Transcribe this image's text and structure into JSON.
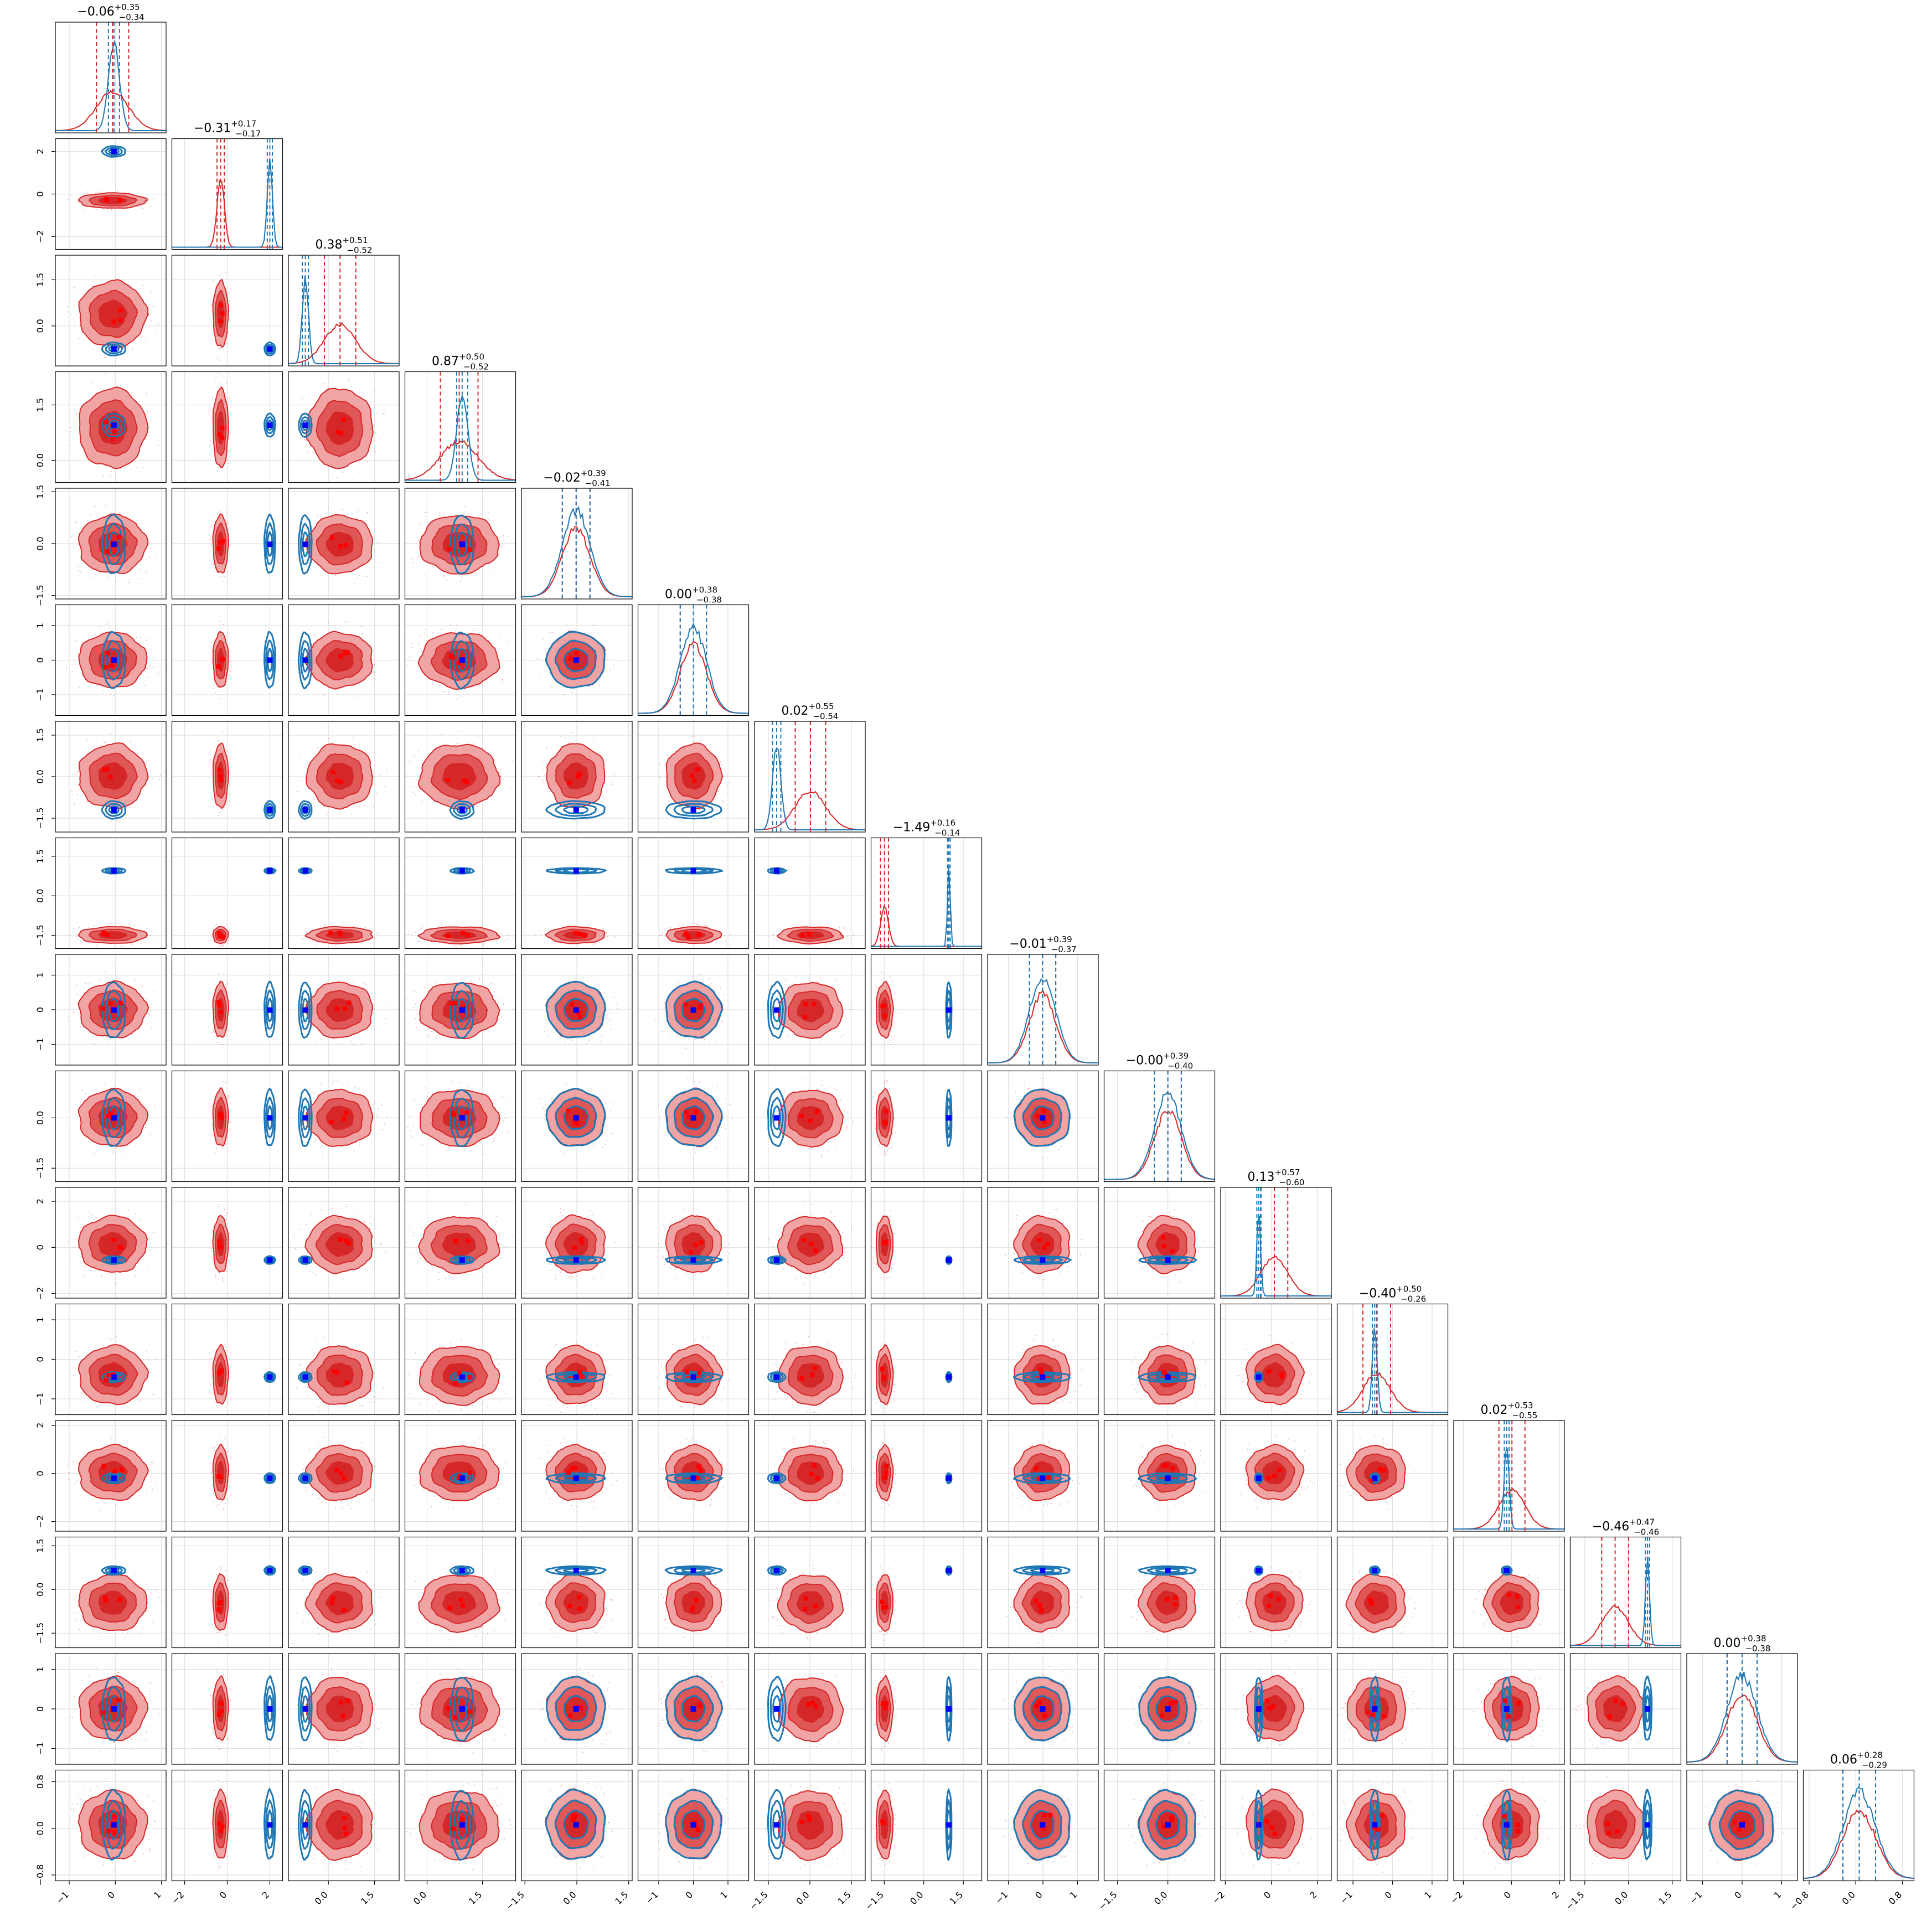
{
  "chart_data": {
    "type": "corner",
    "n_params": 16,
    "grid": true,
    "colors": {
      "red_line": "#d62728",
      "red_fill_outer": "#f1a4a4",
      "red_fill_inner": "#d62728",
      "blue_line": "#1f77b4",
      "truth_marker": "#0000ff",
      "red_points": "#ff0000"
    },
    "params": [
      {
        "index": 0,
        "title_med": "−0.06",
        "title_plus": "+0.35",
        "title_minus": "−0.34",
        "red_mean": -0.06,
        "red_sd": 0.35,
        "blue_mean": -0.03,
        "blue_sd": 0.12,
        "range": [
          -1.3,
          1.1
        ],
        "ticks": [
          -1,
          0,
          1
        ]
      },
      {
        "index": 1,
        "title_med": "−0.31",
        "title_plus": "+0.17",
        "title_minus": "−0.17",
        "red_mean": -0.31,
        "red_sd": 0.17,
        "blue_mean": 2.0,
        "blue_sd": 0.12,
        "range": [
          -2.6,
          2.6
        ],
        "ticks": [
          -2,
          0,
          2
        ]
      },
      {
        "index": 2,
        "title_med": "0.38",
        "title_plus": "+0.51",
        "title_minus": "−0.52",
        "red_mean": 0.38,
        "red_sd": 0.51,
        "blue_mean": -0.75,
        "blue_sd": 0.1,
        "range": [
          -1.3,
          2.3
        ],
        "ticks": [
          0.0,
          1.5
        ]
      },
      {
        "index": 3,
        "title_med": "0.87",
        "title_plus": "+0.50",
        "title_minus": "−0.52",
        "red_mean": 0.87,
        "red_sd": 0.51,
        "blue_mean": 0.95,
        "blue_sd": 0.15,
        "range": [
          -0.6,
          2.4
        ],
        "ticks": [
          0.0,
          1.5
        ]
      },
      {
        "index": 4,
        "title_med": "−0.02",
        "title_plus": "+0.39",
        "title_minus": "−0.41",
        "red_mean": -0.02,
        "red_sd": 0.4,
        "blue_mean": -0.02,
        "blue_sd": 0.4,
        "range": [
          -1.6,
          1.6
        ],
        "ticks": [
          -1.5,
          0.0,
          1.5
        ]
      },
      {
        "index": 5,
        "title_med": "0.00",
        "title_plus": "+0.38",
        "title_minus": "−0.38",
        "red_mean": 0.0,
        "red_sd": 0.38,
        "blue_mean": 0.0,
        "blue_sd": 0.38,
        "range": [
          -1.6,
          1.6
        ],
        "ticks": [
          -1,
          0,
          1
        ]
      },
      {
        "index": 6,
        "title_med": "0.02",
        "title_plus": "+0.55",
        "title_minus": "−0.54",
        "red_mean": 0.02,
        "red_sd": 0.55,
        "blue_mean": -1.2,
        "blue_sd": 0.15,
        "range": [
          -2.0,
          2.0
        ],
        "ticks": [
          -1.5,
          0.0,
          1.5
        ]
      },
      {
        "index": 7,
        "title_med": "−1.49",
        "title_plus": "+0.16",
        "title_minus": "−0.14",
        "red_mean": -1.49,
        "red_sd": 0.15,
        "blue_mean": 0.95,
        "blue_sd": 0.05,
        "range": [
          -2.0,
          2.2
        ],
        "ticks": [
          -1.5,
          0.0,
          1.5
        ]
      },
      {
        "index": 8,
        "title_med": "−0.01",
        "title_plus": "+0.39",
        "title_minus": "−0.37",
        "red_mean": -0.01,
        "red_sd": 0.38,
        "blue_mean": -0.01,
        "blue_sd": 0.38,
        "range": [
          -1.6,
          1.6
        ],
        "ticks": [
          -1,
          0,
          1
        ]
      },
      {
        "index": 9,
        "title_med": "−0.00",
        "title_plus": "+0.39",
        "title_minus": "−0.40",
        "red_mean": 0.0,
        "red_sd": 0.4,
        "blue_mean": 0.0,
        "blue_sd": 0.4,
        "range": [
          -1.9,
          1.4
        ],
        "ticks": [
          -1.5,
          0.0
        ]
      },
      {
        "index": 10,
        "title_med": "0.13",
        "title_plus": "+0.57",
        "title_minus": "−0.60",
        "red_mean": 0.13,
        "red_sd": 0.58,
        "blue_mean": -0.55,
        "blue_sd": 0.08,
        "range": [
          -2.2,
          2.6
        ],
        "ticks": [
          -2,
          0,
          2
        ]
      },
      {
        "index": 11,
        "title_med": "−0.40",
        "title_plus": "+0.50",
        "title_minus": "−0.26",
        "red_mean": -0.4,
        "red_sd": 0.35,
        "blue_mean": -0.45,
        "blue_sd": 0.06,
        "range": [
          -1.4,
          1.4
        ],
        "ticks": [
          -1,
          0,
          1
        ]
      },
      {
        "index": 12,
        "title_med": "0.02",
        "title_plus": "+0.53",
        "title_minus": "−0.55",
        "red_mean": 0.02,
        "red_sd": 0.54,
        "blue_mean": -0.2,
        "blue_sd": 0.1,
        "range": [
          -2.4,
          2.2
        ],
        "ticks": [
          -2,
          0,
          2
        ]
      },
      {
        "index": 13,
        "title_med": "−0.46",
        "title_plus": "+0.47",
        "title_minus": "−0.46",
        "red_mean": -0.46,
        "red_sd": 0.46,
        "blue_mean": 0.65,
        "blue_sd": 0.07,
        "range": [
          -2.0,
          1.8
        ],
        "ticks": [
          -1.5,
          0.0,
          1.5
        ]
      },
      {
        "index": 14,
        "title_med": "0.00",
        "title_plus": "+0.38",
        "title_minus": "−0.38",
        "red_mean": 0.0,
        "red_sd": 0.38,
        "blue_mean": 0.0,
        "blue_sd": 0.38,
        "range": [
          -1.4,
          1.4
        ],
        "ticks": [
          -1,
          0,
          1
        ]
      },
      {
        "index": 15,
        "title_med": "0.06",
        "title_plus": "+0.28",
        "title_minus": "−0.29",
        "red_mean": 0.06,
        "red_sd": 0.28,
        "blue_mean": 0.06,
        "blue_sd": 0.28,
        "range": [
          -0.9,
          1.0
        ],
        "ticks": [
          -0.8,
          0.0,
          0.8
        ]
      }
    ]
  }
}
